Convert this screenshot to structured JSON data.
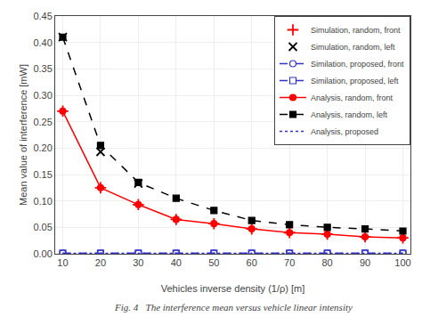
{
  "chart_data": {
    "type": "line",
    "x_label": "Vehicles inverse density (1/ρ) [m]",
    "y_label": "Mean value of interference [mW]",
    "x": [
      10,
      20,
      30,
      40,
      50,
      60,
      70,
      80,
      90,
      100
    ],
    "series": [
      {
        "name": "Simulation, random, front",
        "color": "red",
        "marker": "plus",
        "line_style": "none",
        "values": [
          0.27,
          0.125,
          0.093,
          0.065,
          0.057,
          0.047,
          0.04,
          0.037,
          0.032,
          0.03
        ]
      },
      {
        "name": "Simulation, random, left",
        "color": "black",
        "marker": "x",
        "line_style": "none",
        "values": [
          0.41,
          0.193,
          0.133,
          null,
          null,
          null,
          null,
          null,
          null,
          null
        ]
      },
      {
        "name": "Similation, proposed, front",
        "color": "#3333cc",
        "marker": "circle-open",
        "line_style": "dashed",
        "values": [
          0.001,
          0.001,
          0.001,
          0.001,
          0.001,
          0.001,
          0.001,
          0.001,
          0.001,
          0.001
        ]
      },
      {
        "name": "Similation, proposed, left",
        "color": "#3333cc",
        "marker": "square-open",
        "line_style": "dashed",
        "values": [
          0.001,
          0.001,
          0.001,
          0.001,
          0.001,
          0.001,
          0.001,
          0.001,
          0.001,
          0.001
        ]
      },
      {
        "name": "Analysis, random, front",
        "color": "red",
        "marker": "circle",
        "line_style": "solid",
        "values": [
          0.27,
          0.125,
          0.093,
          0.065,
          0.057,
          0.047,
          0.04,
          0.037,
          0.032,
          0.03
        ]
      },
      {
        "name": "Analysis, random, left",
        "color": "black",
        "marker": "square",
        "line_style": "dashed",
        "values": [
          0.41,
          0.205,
          0.135,
          0.105,
          0.082,
          0.063,
          0.055,
          0.05,
          0.047,
          0.043
        ]
      },
      {
        "name": "Analysis, proposed",
        "color": "#3333cc",
        "marker": "none",
        "line_style": "dotted",
        "values": [
          0.001,
          0.001,
          0.001,
          0.001,
          0.001,
          0.001,
          0.001,
          0.001,
          0.001,
          0.001
        ]
      }
    ],
    "xlim": [
      8,
      102
    ],
    "xticks": [
      10,
      20,
      30,
      40,
      50,
      60,
      70,
      80,
      90,
      100
    ],
    "ylim": [
      0,
      0.45
    ],
    "yticks": [
      {
        "value": 0,
        "label": "0.00"
      },
      0.05,
      {
        "value": 0.1,
        "label": "0.10"
      },
      0.15,
      {
        "value": 0.2,
        "label": "0.20"
      },
      0.25,
      {
        "value": 0.3,
        "label": "0.30"
      },
      0.35,
      {
        "value": 0.4,
        "label": "0.40"
      },
      0.45
    ],
    "grid": true,
    "legend": "upper right",
    "annotations": [
      {
        "text": "Fig. 4   The interference mean versus vehicle linear intensity"
      }
    ]
  }
}
